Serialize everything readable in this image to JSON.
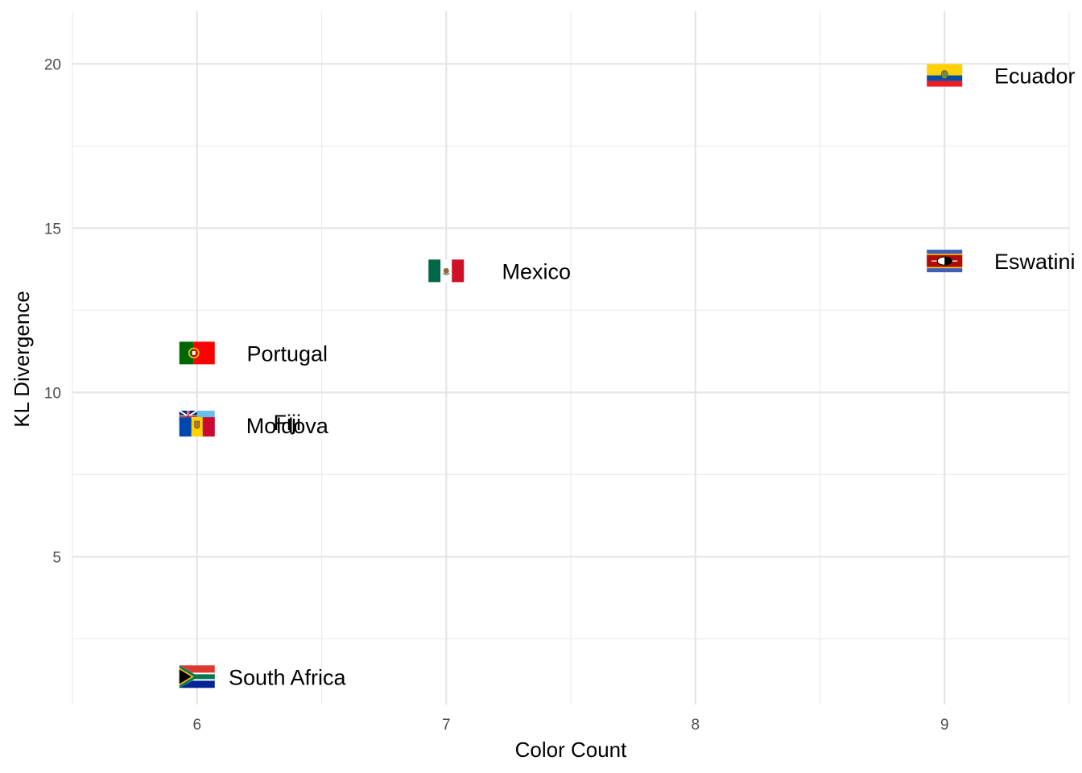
{
  "chart_data": {
    "type": "scatter",
    "title": "",
    "xlabel": "Color Count",
    "ylabel": "KL Divergence",
    "xlim": [
      5.5,
      9.5
    ],
    "ylim": [
      0.5,
      21.6
    ],
    "x_ticks": [
      6,
      7,
      8,
      9
    ],
    "y_ticks": [
      5,
      10,
      15,
      20
    ],
    "grid": true,
    "legend": "none",
    "points": [
      {
        "label": "Ecuador",
        "x": 9,
        "y": 19.65,
        "flag": "ecuador-flag-icon"
      },
      {
        "label": "Eswatini",
        "x": 9,
        "y": 14.0,
        "flag": "eswatini-flag-icon"
      },
      {
        "label": "Mexico",
        "x": 7,
        "y": 13.7,
        "flag": "mexico-flag-icon"
      },
      {
        "label": "Portugal",
        "x": 6,
        "y": 11.2,
        "flag": "portugal-flag-icon"
      },
      {
        "label": "Fiji",
        "x": 6,
        "y": 9.1,
        "flag": "fiji-flag-icon"
      },
      {
        "label": "Moldova",
        "x": 6,
        "y": 9.0,
        "flag": "moldova-flag-icon"
      },
      {
        "label": "South Africa",
        "x": 6,
        "y": 1.35,
        "flag": "south-africa-flag-icon"
      }
    ]
  }
}
